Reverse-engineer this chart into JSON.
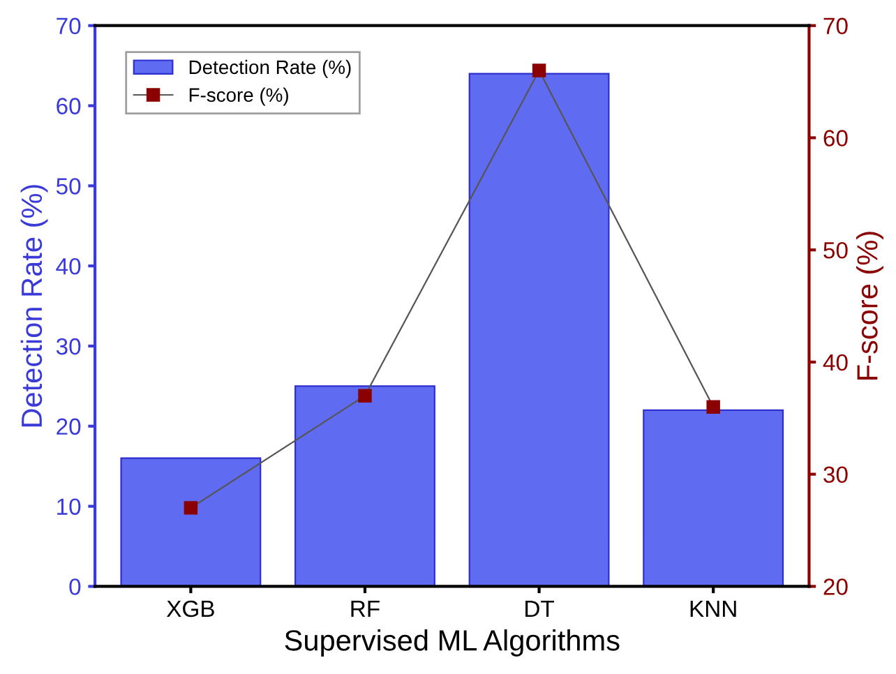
{
  "chart_data": {
    "type": "bar",
    "xlabel": "Supervised ML Algorithms",
    "ylabel": "Detection Rate (%)",
    "y2label": "F-score (%)",
    "categories": [
      "XGB",
      "RF",
      "DT",
      "KNN"
    ],
    "series": [
      {
        "name": "Detection Rate (%)",
        "color": "#5f6cf2",
        "values": [
          16,
          25,
          64,
          22
        ]
      },
      {
        "name": "F-score (%)",
        "type": "line",
        "axis": "y2",
        "color": "#8b0000",
        "values": [
          27,
          37,
          66,
          36
        ],
        "marker": "square"
      }
    ],
    "ylim": [
      0,
      70
    ],
    "yticks": [
      0,
      10,
      20,
      30,
      40,
      50,
      60,
      70
    ],
    "y2lim": [
      20,
      70
    ],
    "y2ticks": [
      20,
      30,
      40,
      50,
      60,
      70
    ],
    "legend": "top left",
    "grid": false
  }
}
